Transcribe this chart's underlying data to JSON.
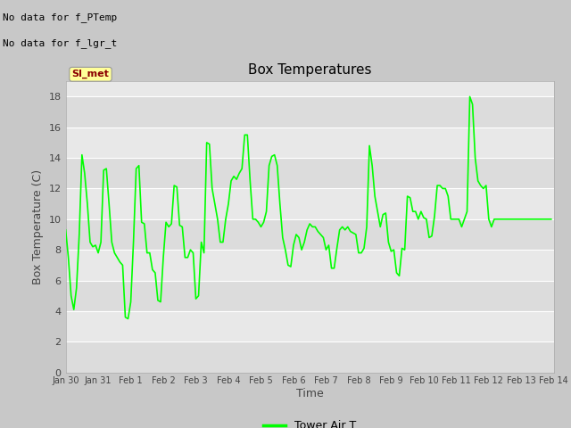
{
  "title": "Box Temperatures",
  "xlabel": "Time",
  "ylabel": "Box Temperature (C)",
  "text_no_data_1": "No data for f_PTemp",
  "text_no_data_2": "No data for f_lgr_t",
  "si_met_label": "SI_met",
  "legend_label": "Tower Air T",
  "legend_color": "#00FF00",
  "line_color": "#00FF00",
  "fig_bg_color": "#C8C8C8",
  "plot_bg_color": "#E8E8E8",
  "band_light": "#EBEBEB",
  "band_dark": "#D8D8D8",
  "ylim": [
    0,
    19
  ],
  "yticks": [
    0,
    2,
    4,
    6,
    8,
    10,
    12,
    14,
    16,
    18
  ],
  "xtick_labels": [
    "Jan 30",
    "Jan 31",
    "Feb 1",
    "Feb 2",
    "Feb 3",
    "Feb 4",
    "Feb 5",
    "Feb 6",
    "Feb 7",
    "Feb 8",
    "Feb 9",
    "Feb 10",
    "Feb 11",
    "Feb 12",
    "Feb 13",
    "Feb 14"
  ],
  "time_values": [
    0.0,
    0.083,
    0.167,
    0.25,
    0.333,
    0.417,
    0.5,
    0.583,
    0.667,
    0.75,
    0.833,
    0.917,
    1.0,
    1.083,
    1.167,
    1.25,
    1.333,
    1.417,
    1.5,
    1.583,
    1.667,
    1.75,
    1.833,
    1.917,
    2.0,
    2.083,
    2.167,
    2.25,
    2.333,
    2.417,
    2.5,
    2.583,
    2.667,
    2.75,
    2.833,
    2.917,
    3.0,
    3.083,
    3.167,
    3.25,
    3.333,
    3.417,
    3.5,
    3.583,
    3.667,
    3.75,
    3.833,
    3.917,
    4.0,
    4.083,
    4.167,
    4.25,
    4.333,
    4.417,
    4.5,
    4.583,
    4.667,
    4.75,
    4.833,
    4.917,
    5.0,
    5.083,
    5.167,
    5.25,
    5.333,
    5.417,
    5.5,
    5.583,
    5.667,
    5.75,
    5.833,
    5.917,
    6.0,
    6.083,
    6.167,
    6.25,
    6.333,
    6.417,
    6.5,
    6.583,
    6.667,
    6.75,
    6.833,
    6.917,
    7.0,
    7.083,
    7.167,
    7.25,
    7.333,
    7.417,
    7.5,
    7.583,
    7.667,
    7.75,
    7.833,
    7.917,
    8.0,
    8.083,
    8.167,
    8.25,
    8.333,
    8.417,
    8.5,
    8.583,
    8.667,
    8.75,
    8.833,
    8.917,
    9.0,
    9.083,
    9.167,
    9.25,
    9.333,
    9.417,
    9.5,
    9.583,
    9.667,
    9.75,
    9.833,
    9.917,
    10.0,
    10.083,
    10.167,
    10.25,
    10.333,
    10.417,
    10.5,
    10.583,
    10.667,
    10.75,
    10.833,
    10.917,
    11.0,
    11.083,
    11.167,
    11.25,
    11.333,
    11.417,
    11.5,
    11.583,
    11.667,
    11.75,
    11.833,
    11.917,
    12.0,
    12.083,
    12.167,
    12.25,
    12.333,
    12.417,
    12.5,
    12.583,
    12.667,
    12.75,
    12.833,
    12.917,
    13.0,
    13.083,
    13.167,
    13.25,
    13.333,
    13.417,
    13.5,
    13.583,
    13.667,
    13.75,
    13.833,
    13.917,
    14.0,
    14.083,
    14.167,
    14.25,
    14.333,
    14.417,
    14.5,
    14.583,
    14.667,
    14.75,
    14.833,
    14.917
  ],
  "temp_values": [
    9.3,
    7.5,
    5.0,
    4.1,
    5.5,
    9.0,
    14.2,
    13.0,
    11.0,
    8.5,
    8.2,
    8.3,
    7.8,
    8.5,
    13.2,
    13.3,
    11.0,
    8.5,
    7.8,
    7.5,
    7.2,
    7.0,
    3.6,
    3.5,
    4.6,
    8.5,
    13.3,
    13.5,
    9.8,
    9.7,
    7.8,
    7.8,
    6.7,
    6.5,
    4.7,
    4.6,
    7.5,
    9.8,
    9.5,
    9.7,
    12.2,
    12.1,
    9.6,
    9.5,
    7.5,
    7.5,
    8.0,
    7.8,
    4.8,
    5.0,
    8.5,
    7.8,
    15.0,
    14.9,
    12.0,
    11.0,
    10.0,
    8.5,
    8.5,
    10.0,
    11.0,
    12.5,
    12.8,
    12.6,
    13.0,
    13.3,
    15.5,
    15.5,
    12.5,
    10.0,
    10.0,
    9.8,
    9.5,
    9.8,
    10.5,
    13.5,
    14.1,
    14.2,
    13.5,
    11.0,
    8.8,
    8.0,
    7.0,
    6.9,
    8.3,
    9.0,
    8.8,
    8.0,
    8.5,
    9.3,
    9.7,
    9.5,
    9.5,
    9.2,
    9.0,
    8.8,
    8.0,
    8.3,
    6.8,
    6.8,
    8.1,
    9.3,
    9.5,
    9.3,
    9.5,
    9.2,
    9.1,
    9.0,
    7.8,
    7.8,
    8.1,
    9.5,
    14.8,
    13.5,
    11.5,
    10.5,
    9.5,
    10.3,
    10.4,
    8.5,
    7.9,
    8.0,
    6.5,
    6.3,
    8.1,
    8.0,
    11.5,
    11.4,
    10.5,
    10.5,
    10.0,
    10.5,
    10.1,
    10.0,
    8.8,
    8.9,
    10.2,
    12.2,
    12.2,
    12.0,
    12.0,
    11.5,
    10.0,
    10.0,
    10.0,
    10.0,
    9.5,
    10.0,
    10.5,
    18.0,
    17.5,
    14.0,
    12.5,
    12.2,
    12.0,
    12.2,
    10.0,
    9.5,
    10.0,
    10.0,
    10.0,
    10.0,
    10.0,
    10.0,
    10.0,
    10.0,
    10.0,
    10.0,
    10.0,
    10.0,
    10.0,
    10.0,
    10.0,
    10.0,
    10.0,
    10.0,
    10.0,
    10.0,
    10.0,
    10.0
  ]
}
